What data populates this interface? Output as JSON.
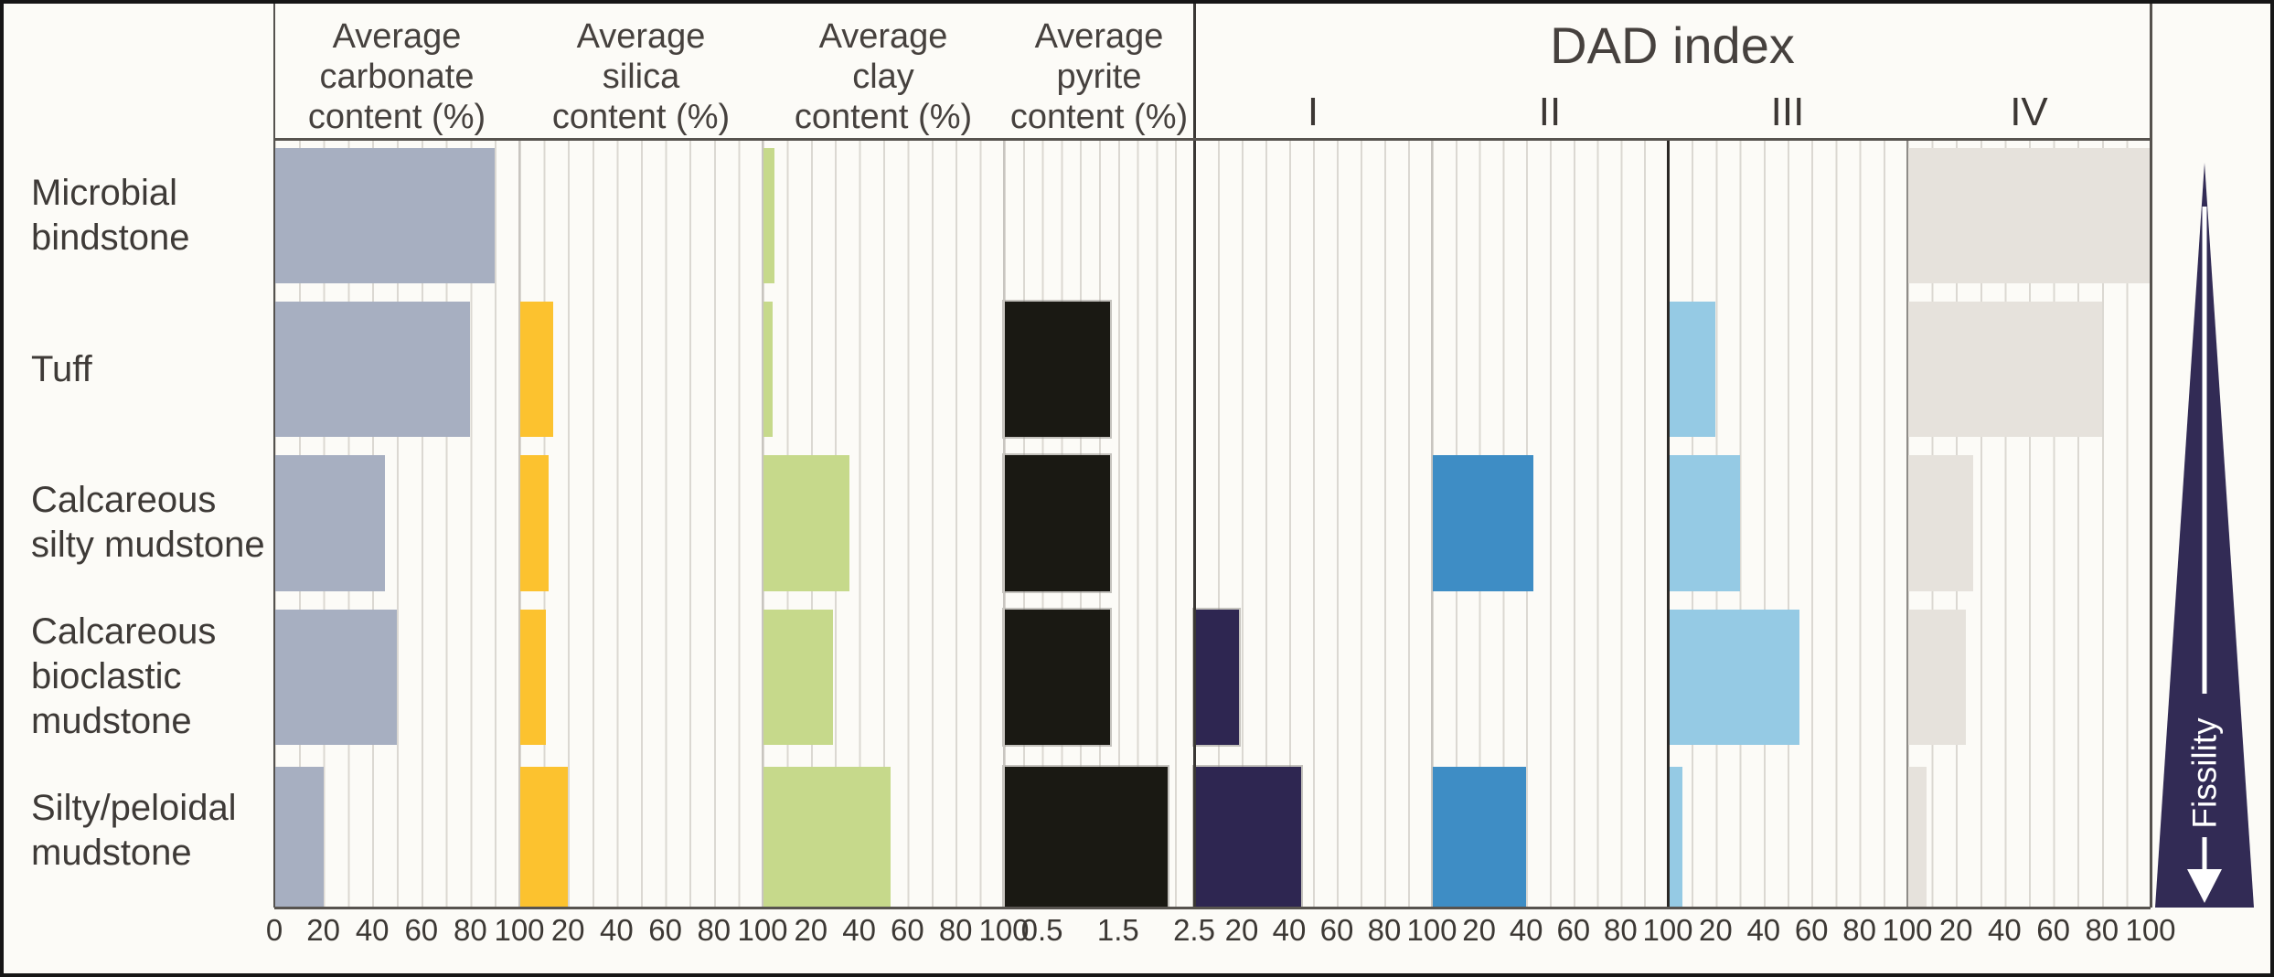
{
  "chart_data": {
    "type": "bar",
    "orientation": "horizontal",
    "title": "DAD index",
    "rows": [
      "Microbial bindstone",
      "Tuff",
      "Calcareous silty mudstone",
      "Calcareous bioclastic mudstone",
      "Silty/peloidal mudstone"
    ],
    "dad_group": {
      "label": "DAD index",
      "sub_columns": [
        "I",
        "II",
        "III",
        "IV"
      ]
    },
    "columns": [
      {
        "key": "carbonate",
        "header_lines": [
          "Average",
          "carbonate",
          "content (%)"
        ],
        "axis_max": 100,
        "ticks": [
          0,
          20,
          40,
          60,
          80,
          100
        ],
        "bar_color": "#a7afc1",
        "values": [
          90,
          80,
          45,
          50,
          20
        ]
      },
      {
        "key": "silica",
        "header_lines": [
          "Average",
          "silica",
          "content (%)"
        ],
        "axis_max": 100,
        "ticks": [
          20,
          40,
          60,
          80,
          100
        ],
        "bar_color": "#fcc22f",
        "values": [
          0,
          14,
          12,
          11,
          20
        ]
      },
      {
        "key": "clay",
        "header_lines": [
          "Average",
          "clay",
          "content (%)"
        ],
        "axis_max": 100,
        "ticks": [
          20,
          40,
          60,
          80,
          100
        ],
        "bar_color": "#c6d98b",
        "values": [
          5,
          4,
          36,
          29,
          53
        ]
      },
      {
        "key": "pyrite",
        "header_lines": [
          "Average",
          "pyrite",
          "content (%)"
        ],
        "axis_max": 2.5,
        "ticks": [
          0.5,
          1.5,
          2.5
        ],
        "bar_color": "#1a1913",
        "values": [
          0,
          1.4,
          1.4,
          1.4,
          2.15
        ]
      },
      {
        "key": "dad-i",
        "header_lines": [
          "I"
        ],
        "axis_max": 100,
        "ticks": [
          20,
          40,
          60,
          80,
          100
        ],
        "bar_color": "#2e2651",
        "values": [
          0,
          0,
          0,
          19,
          45
        ]
      },
      {
        "key": "dad-ii",
        "header_lines": [
          "II"
        ],
        "axis_max": 100,
        "ticks": [
          20,
          40,
          60,
          80,
          100
        ],
        "bar_color": "#3e8dc5",
        "values": [
          0,
          0,
          43,
          0,
          40
        ]
      },
      {
        "key": "dad-iii",
        "header_lines": [
          "III"
        ],
        "axis_max": 100,
        "ticks": [
          20,
          40,
          60,
          80,
          100
        ],
        "bar_color": "#95cae4",
        "values": [
          0,
          20,
          30,
          55,
          6
        ]
      },
      {
        "key": "dad-iv",
        "header_lines": [
          "IV"
        ],
        "axis_max": 100,
        "ticks": [
          20,
          40,
          60,
          80,
          100
        ],
        "bar_color": "#e6e2dc",
        "values": [
          100,
          80,
          27,
          24,
          8
        ]
      }
    ],
    "fissility": {
      "label": "Fissility",
      "direction": "down",
      "arrow_color": "#322b55",
      "text_color": "#ffffff"
    },
    "layout_hints": {
      "grid": "on",
      "gridline_step_percent": 10,
      "bars_anchor": "left"
    },
    "colors": {
      "background": "#fcfbf7",
      "gridline": "#dbd8d2",
      "axis_line": "#55514d",
      "strong_divider": "#2b2825",
      "soft_divider": "#8f8c88",
      "text": "#3f3b38",
      "border": "#161616"
    }
  }
}
